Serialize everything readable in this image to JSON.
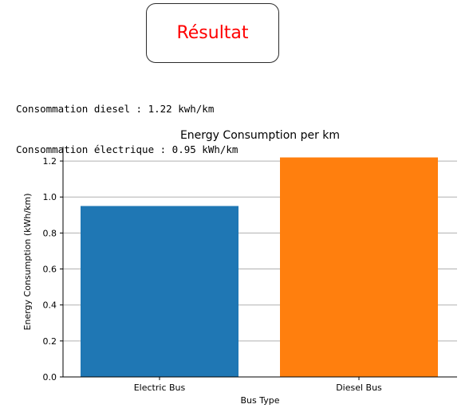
{
  "result_box": {
    "title": "Résultat",
    "title_color": "#ff0000"
  },
  "console": {
    "lines": [
      "Consommation diesel : 1.22 kwh/km",
      "Consommation électrique : 0.95 kWh/km"
    ]
  },
  "chart_data": {
    "type": "bar",
    "title": "Energy Consumption per km",
    "xlabel": "Bus Type",
    "ylabel": "Energy Consumption (kWh/km)",
    "categories": [
      "Electric Bus",
      "Diesel Bus"
    ],
    "values": [
      0.95,
      1.22
    ],
    "colors": [
      "#1f77b4",
      "#ff7f0e"
    ],
    "ylim": [
      0,
      1.28
    ],
    "yticks": [
      0.0,
      0.2,
      0.4,
      0.6,
      0.8,
      1.0,
      1.2
    ],
    "ytick_labels": [
      "0.0",
      "0.2",
      "0.4",
      "0.6",
      "0.8",
      "1.0",
      "1.2"
    ],
    "grid": "y",
    "legend": "none"
  }
}
